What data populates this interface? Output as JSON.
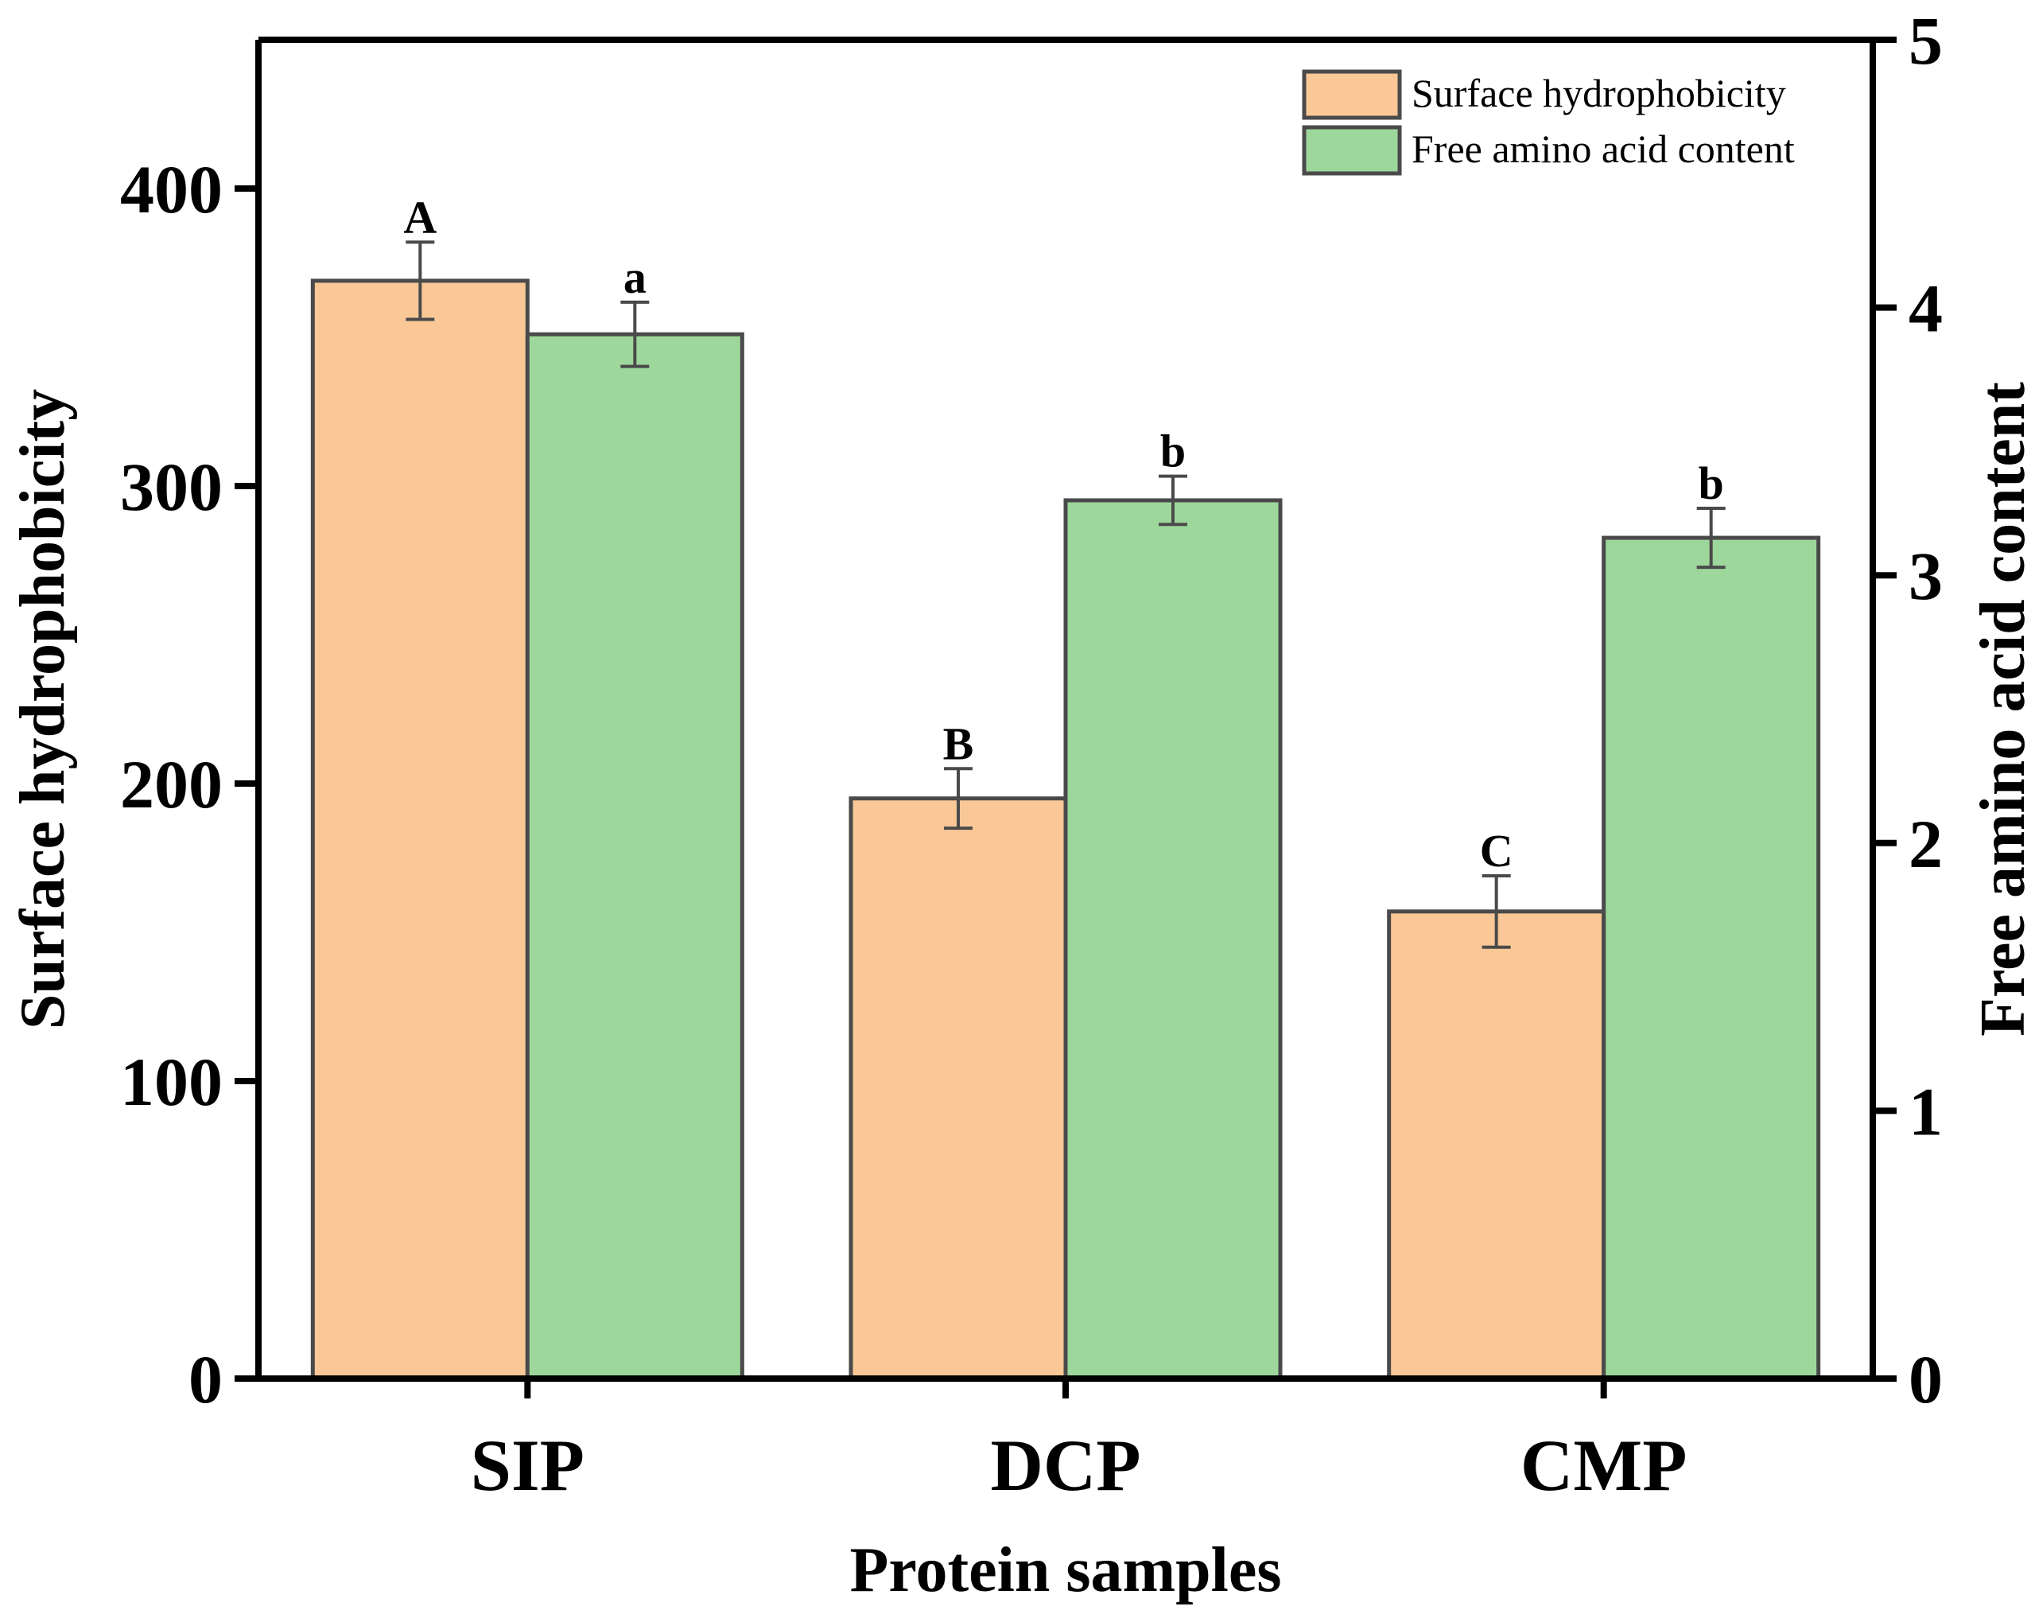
{
  "chart_data": {
    "type": "bar",
    "categories": [
      "SIP",
      "DCP",
      "CMP"
    ],
    "xlabel": "Protein samples",
    "ylabel_left": "Surface hydrophobicity",
    "ylabel_right": "Free amino acid content",
    "ylim_left": [
      0,
      450
    ],
    "ylim_right": [
      0,
      5
    ],
    "yticks_left": [
      0,
      100,
      200,
      300,
      400
    ],
    "yticks_right": [
      0,
      1,
      2,
      3,
      4,
      5
    ],
    "legend_position": "top-right",
    "grid": false,
    "series": [
      {
        "name": "Surface hydrophobicity",
        "axis": "left",
        "color": "#F9C896",
        "values": [
          369,
          195,
          157
        ],
        "errors": [
          13,
          10,
          12
        ],
        "labels": [
          "A",
          "B",
          "C"
        ]
      },
      {
        "name": "Free amino acid content",
        "axis": "right",
        "color": "#9DD79B",
        "values": [
          3.9,
          3.28,
          3.14
        ],
        "errors": [
          0.12,
          0.09,
          0.11
        ],
        "labels": [
          "a",
          "b",
          "b"
        ]
      }
    ]
  }
}
